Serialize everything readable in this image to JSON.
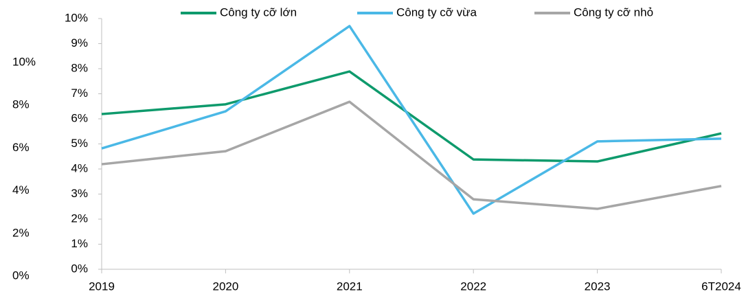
{
  "chart_data": {
    "type": "line",
    "categories": [
      "2019",
      "2020",
      "2021",
      "2022",
      "2023",
      "6T2024"
    ],
    "series": [
      {
        "name": "Công ty cỡ lớn",
        "color": "#0e9a6c",
        "values": [
          6.19,
          6.58,
          7.89,
          4.38,
          4.3,
          5.42
        ]
      },
      {
        "name": "Công ty cỡ vừa",
        "color": "#4ab8e6",
        "values": [
          4.82,
          6.3,
          9.7,
          2.22,
          5.1,
          5.21
        ]
      },
      {
        "name": "Công ty cỡ nhỏ",
        "color": "#a6a6a6",
        "values": [
          4.19,
          4.71,
          6.68,
          2.79,
          2.41,
          3.32
        ]
      }
    ],
    "ylim": [
      0,
      10
    ],
    "yticks": [
      {
        "value": 0,
        "label": "0%"
      },
      {
        "value": 1,
        "label": "1%"
      },
      {
        "value": 2,
        "label": "2%"
      },
      {
        "value": 3,
        "label": "3%"
      },
      {
        "value": 4,
        "label": "4%"
      },
      {
        "value": 5,
        "label": "5%"
      },
      {
        "value": 6,
        "label": "6%"
      },
      {
        "value": 7,
        "label": "7%"
      },
      {
        "value": 8,
        "label": "8%"
      },
      {
        "value": 9,
        "label": "9%"
      },
      {
        "value": 10,
        "label": "10%"
      }
    ],
    "y2lim": [
      0,
      10
    ],
    "y2ticks": [
      {
        "value": 0,
        "label": "0%"
      },
      {
        "value": 2,
        "label": "2%"
      },
      {
        "value": 4,
        "label": "4%"
      },
      {
        "value": 6,
        "label": "6%"
      },
      {
        "value": 8,
        "label": "8%"
      },
      {
        "value": 10,
        "label": "10%"
      }
    ],
    "legend": "top"
  }
}
